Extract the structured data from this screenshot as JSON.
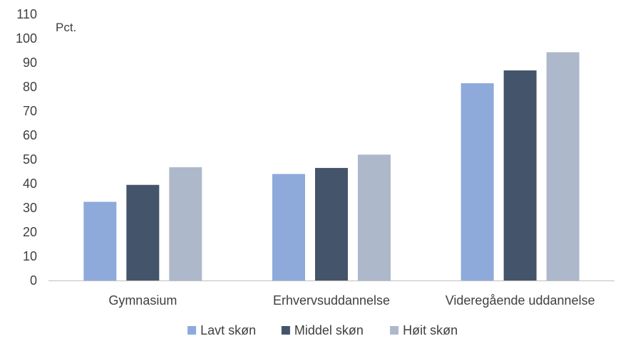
{
  "chart_data": {
    "type": "bar",
    "unit_label": "Pct.",
    "categories": [
      "Gymnasium",
      "Erhvervsuddannelse",
      "Videregående uddannelse"
    ],
    "series": [
      {
        "name": "Lavt skøn",
        "color": "#8eaadb",
        "values": [
          32.5,
          44,
          81.5
        ]
      },
      {
        "name": "Middel skøn",
        "color": "#44546a",
        "values": [
          39.5,
          46.5,
          86.8
        ]
      },
      {
        "name": "Høit skøn",
        "color": "#adb9ca",
        "values": [
          46.8,
          52,
          94.3
        ]
      }
    ],
    "ylim": [
      0,
      110
    ],
    "yticks": [
      0,
      10,
      20,
      30,
      40,
      50,
      60,
      70,
      80,
      90,
      100,
      110
    ],
    "grid": false,
    "legend": "bottom"
  }
}
